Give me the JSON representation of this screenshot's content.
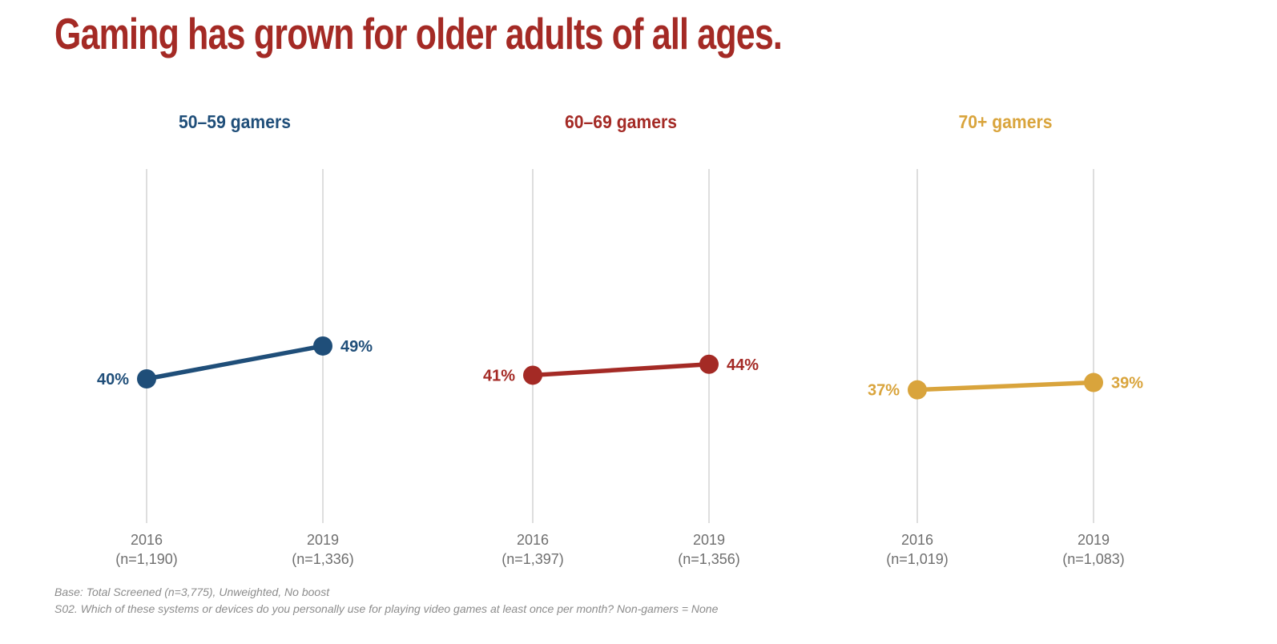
{
  "page": {
    "title": "Gaming has grown for older adults of all ages."
  },
  "colors": {
    "title": "#A42A25",
    "gridline": "#DEDEDE",
    "axis_label": "#6F6F6F",
    "footnote": "#8C8C8C"
  },
  "chart_data": [
    {
      "type": "line",
      "title": "50–59 gamers",
      "color": "#1F4E79",
      "x": [
        "2016",
        "2019"
      ],
      "x_sublabels": [
        "(n=1,190)",
        "(n=1,336)"
      ],
      "values": [
        40,
        49
      ],
      "value_labels": [
        "40%",
        "49%"
      ],
      "ylabel": "",
      "xlabel": "",
      "grid": "vertical-only",
      "legend": "none"
    },
    {
      "type": "line",
      "title": "60–69 gamers",
      "color": "#A42A25",
      "x": [
        "2016",
        "2019"
      ],
      "x_sublabels": [
        "(n=1,397)",
        "(n=1,356)"
      ],
      "values": [
        41,
        44
      ],
      "value_labels": [
        "41%",
        "44%"
      ],
      "ylabel": "",
      "xlabel": "",
      "grid": "vertical-only",
      "legend": "none"
    },
    {
      "type": "line",
      "title": "70+ gamers",
      "color": "#D9A43C",
      "x": [
        "2016",
        "2019"
      ],
      "x_sublabels": [
        "(n=1,019)",
        "(n=1,083)"
      ],
      "values": [
        37,
        39
      ],
      "value_labels": [
        "37%",
        "39%"
      ],
      "ylabel": "",
      "xlabel": "",
      "grid": "vertical-only",
      "legend": "none"
    }
  ],
  "footnotes": [
    "Base: Total Screened (n=3,775), Unweighted, No boost",
    "S02. Which of these systems or devices do you personally use for playing video games at least once per month? Non-gamers = None"
  ]
}
